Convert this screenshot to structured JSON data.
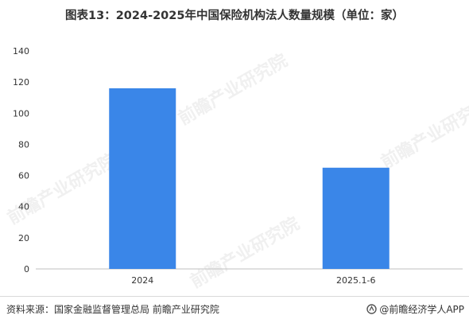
{
  "title": "图表13：2024-2025年中国保险机构法人数量规模（单位：家）",
  "source": "资料来源：国家金融监督管理总局  前瞻产业研究院",
  "brand": "@前瞻经济学人APP",
  "watermark": "前瞻产业研究院",
  "colors": {
    "bar": "#3a86e8",
    "axis": "#bfbfbf",
    "text": "#333333"
  },
  "chart_data": {
    "type": "bar",
    "categories": [
      "2024",
      "2025.1-6"
    ],
    "values": [
      116,
      65
    ],
    "ylim": [
      0,
      140
    ],
    "yticks": [
      0,
      20,
      40,
      60,
      80,
      100,
      120,
      140
    ],
    "xlabel": "",
    "ylabel": "",
    "grid": false
  }
}
